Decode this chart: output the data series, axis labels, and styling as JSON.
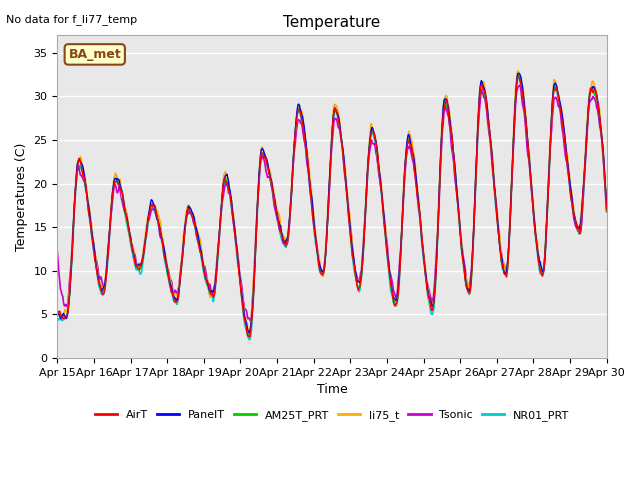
{
  "title": "Temperature",
  "xlabel": "Time",
  "ylabel": "Temperatures (C)",
  "top_left_note": "No data for f_li77_temp",
  "ba_met_label": "BA_met",
  "ylim": [
    0,
    37
  ],
  "yticks": [
    0,
    5,
    10,
    15,
    20,
    25,
    30,
    35
  ],
  "background_color": "#ffffff",
  "plot_bg_color": "#e8e8e8",
  "series": {
    "AirT": {
      "color": "#ff0000",
      "lw": 1.0
    },
    "PanelT": {
      "color": "#0000ff",
      "lw": 1.0
    },
    "AM25T_PRT": {
      "color": "#00cc00",
      "lw": 1.0
    },
    "li75_t": {
      "color": "#ffaa00",
      "lw": 1.2
    },
    "Tsonic": {
      "color": "#cc00cc",
      "lw": 1.2
    },
    "NR01_PRT": {
      "color": "#00cccc",
      "lw": 1.2
    }
  },
  "x_tick_labels": [
    "Apr 15",
    "Apr 16",
    "Apr 17",
    "Apr 18",
    "Apr 19",
    "Apr 20",
    "Apr 21",
    "Apr 22",
    "Apr 23",
    "Apr 24",
    "Apr 25",
    "Apr 26",
    "Apr 27",
    "Apr 28",
    "Apr 29",
    "Apr 30"
  ],
  "grid_color": "#ffffff",
  "peaks": [
    22.5,
    20.5,
    17.5,
    17.0,
    20.5,
    23.5,
    28.5,
    28.5,
    26.0,
    25.0,
    29.5,
    31.5,
    32.5,
    31.0,
    31.0
  ],
  "troughs": [
    4.5,
    7.5,
    10.0,
    6.5,
    7.0,
    2.5,
    13.0,
    9.5,
    8.0,
    6.0,
    5.5,
    7.5,
    9.5,
    9.5,
    14.5
  ]
}
